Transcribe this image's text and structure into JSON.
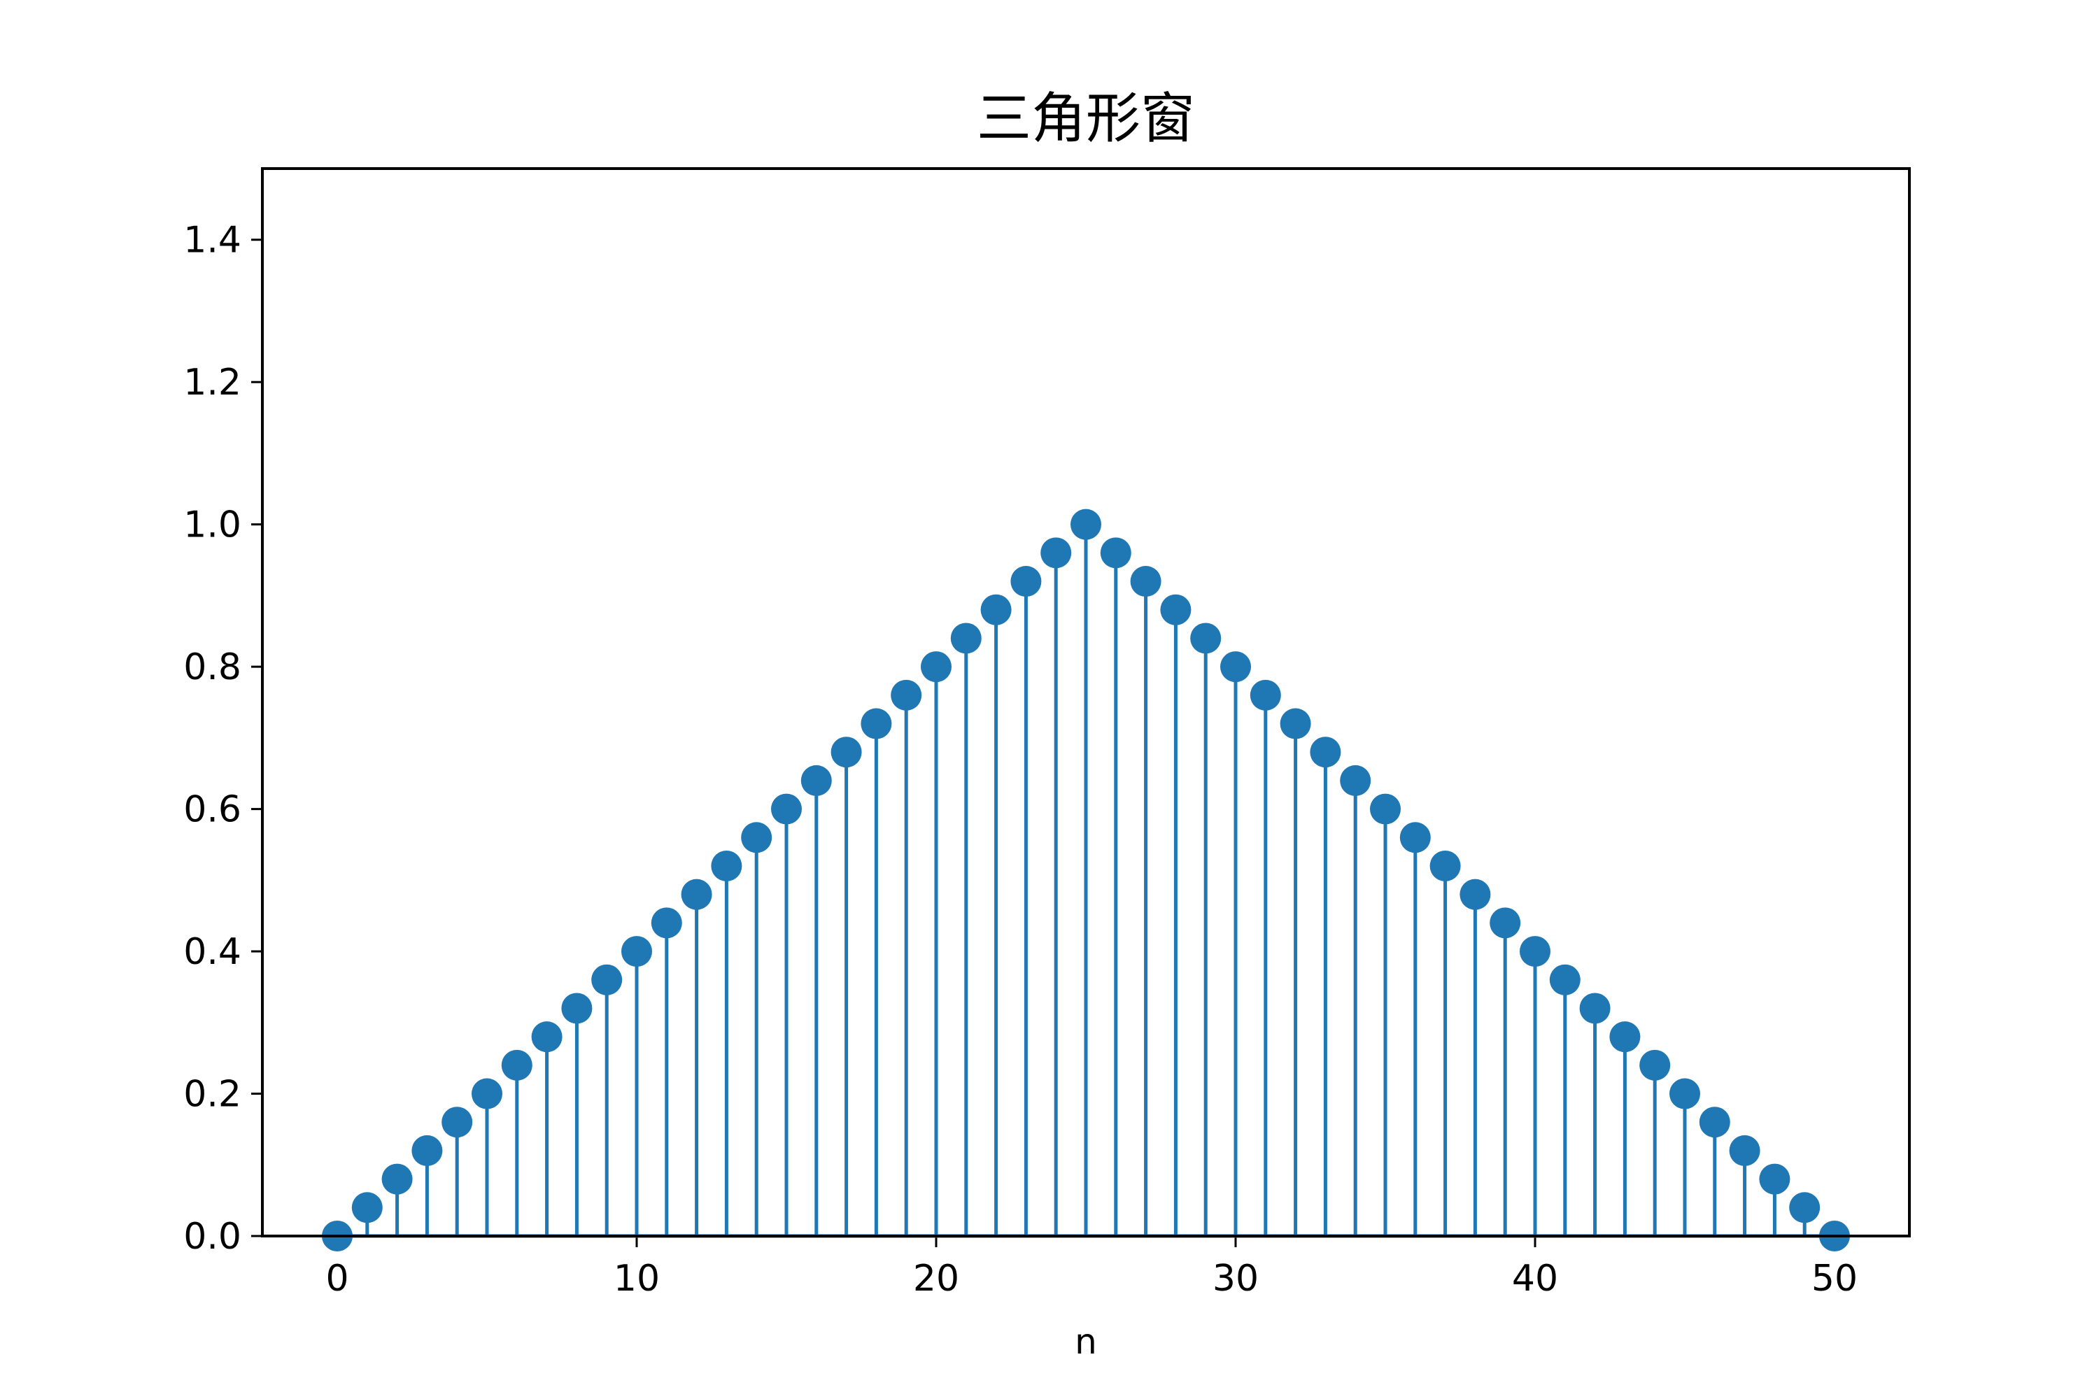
{
  "chart_data": {
    "type": "stem",
    "title": "三角形窗",
    "xlabel": "n",
    "ylabel": "",
    "xlim": [
      -2.5,
      52.5
    ],
    "ylim": [
      0.0,
      1.5
    ],
    "xticks": [
      0,
      10,
      20,
      30,
      40,
      50
    ],
    "xtick_labels": [
      "0",
      "10",
      "20",
      "30",
      "40",
      "50"
    ],
    "yticks": [
      0.0,
      0.2,
      0.4,
      0.6,
      0.8,
      1.0,
      1.2,
      1.4
    ],
    "ytick_labels": [
      "0.0",
      "0.2",
      "0.4",
      "0.6",
      "0.8",
      "1.0",
      "1.2",
      "1.4"
    ],
    "grid": false,
    "color": "#1f77b4",
    "series": [
      {
        "x": [
          0,
          1,
          2,
          3,
          4,
          5,
          6,
          7,
          8,
          9,
          10,
          11,
          12,
          13,
          14,
          15,
          16,
          17,
          18,
          19,
          20,
          21,
          22,
          23,
          24,
          25,
          26,
          27,
          28,
          29,
          30,
          31,
          32,
          33,
          34,
          35,
          36,
          37,
          38,
          39,
          40,
          41,
          42,
          43,
          44,
          45,
          46,
          47,
          48,
          49,
          50
        ],
        "y": [
          0.0,
          0.04,
          0.08,
          0.12,
          0.16,
          0.2,
          0.24,
          0.28,
          0.32,
          0.36,
          0.4,
          0.44,
          0.48,
          0.52,
          0.56,
          0.6,
          0.64,
          0.68,
          0.72,
          0.76,
          0.8,
          0.84,
          0.88,
          0.92,
          0.96,
          1.0,
          0.96,
          0.92,
          0.88,
          0.84,
          0.8,
          0.76,
          0.72,
          0.68,
          0.64,
          0.6,
          0.56,
          0.52,
          0.48,
          0.44,
          0.4,
          0.36,
          0.32,
          0.28,
          0.24,
          0.2,
          0.16,
          0.12,
          0.08,
          0.04,
          0.0
        ]
      }
    ]
  }
}
